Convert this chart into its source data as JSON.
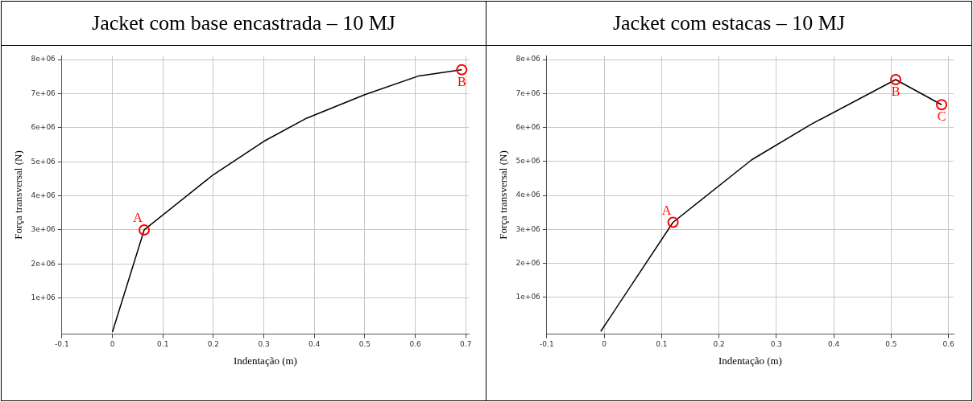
{
  "chart_data": [
    {
      "type": "line",
      "title": "Jacket com base encastrada – 10 MJ",
      "xlabel": "Indentação (m)",
      "ylabel": "Força transversal (N)",
      "x": [
        0,
        0.063,
        0.2,
        0.3,
        0.385,
        0.5,
        0.607,
        0.692
      ],
      "series": [
        {
          "color": "#000000",
          "values": [
            0,
            3000000,
            4620000,
            5600000,
            6280000,
            6970000,
            7520000,
            7700000
          ]
        }
      ],
      "xlim": [
        -0.1,
        0.706
      ],
      "xticks": [
        -0.1,
        0,
        0.1,
        0.2,
        0.3,
        0.4,
        0.5,
        0.6,
        0.7
      ],
      "ylim": [
        -60000,
        8110000
      ],
      "yticks": [
        {
          "value": 1000000,
          "label": "1e+06"
        },
        {
          "value": 2000000,
          "label": "2e+06"
        },
        {
          "value": 3000000,
          "label": "3e+06"
        },
        {
          "value": 4000000,
          "label": "4e+06"
        },
        {
          "value": 5000000,
          "label": "5e+06"
        },
        {
          "value": 6000000,
          "label": "6e+06"
        },
        {
          "value": 7000000,
          "label": "7e+06"
        },
        {
          "value": 8000000,
          "label": "8e+06"
        }
      ],
      "grid": true,
      "legend": false,
      "line_style": "solid",
      "annotations": [
        {
          "text": "A",
          "x": 0.063,
          "y": 3000000
        },
        {
          "text": "B",
          "x": 0.692,
          "y": 7700000
        }
      ]
    },
    {
      "type": "line",
      "title": "Jacket com estacas – 10 MJ",
      "xlabel": "Indentação (m)",
      "ylabel": "Força transversal (N)",
      "x": [
        -0.006,
        0.12,
        0.257,
        0.36,
        0.508,
        0.588
      ],
      "series": [
        {
          "color": "#000000",
          "values": [
            0,
            3210000,
            5050000,
            6090000,
            7410000,
            6670000
          ]
        }
      ],
      "xlim": [
        -0.1,
        0.609
      ],
      "xticks": [
        -0.1,
        0,
        0.1,
        0.2,
        0.3,
        0.4,
        0.5,
        0.6
      ],
      "ylim": [
        -80000,
        8110000
      ],
      "yticks": [
        {
          "value": 1000000,
          "label": "1e+06"
        },
        {
          "value": 2000000,
          "label": "2e+06"
        },
        {
          "value": 3000000,
          "label": "3e+06"
        },
        {
          "value": 4000000,
          "label": "4e+06"
        },
        {
          "value": 5000000,
          "label": "5e+06"
        },
        {
          "value": 6000000,
          "label": "6e+06"
        },
        {
          "value": 7000000,
          "label": "7e+06"
        },
        {
          "value": 8000000,
          "label": "8e+06"
        }
      ],
      "grid": true,
      "legend": false,
      "line_style": "solid",
      "annotations": [
        {
          "text": "A",
          "x": 0.12,
          "y": 3210000
        },
        {
          "text": "B",
          "x": 0.508,
          "y": 7410000
        },
        {
          "text": "C",
          "x": 0.588,
          "y": 6670000
        }
      ]
    }
  ]
}
